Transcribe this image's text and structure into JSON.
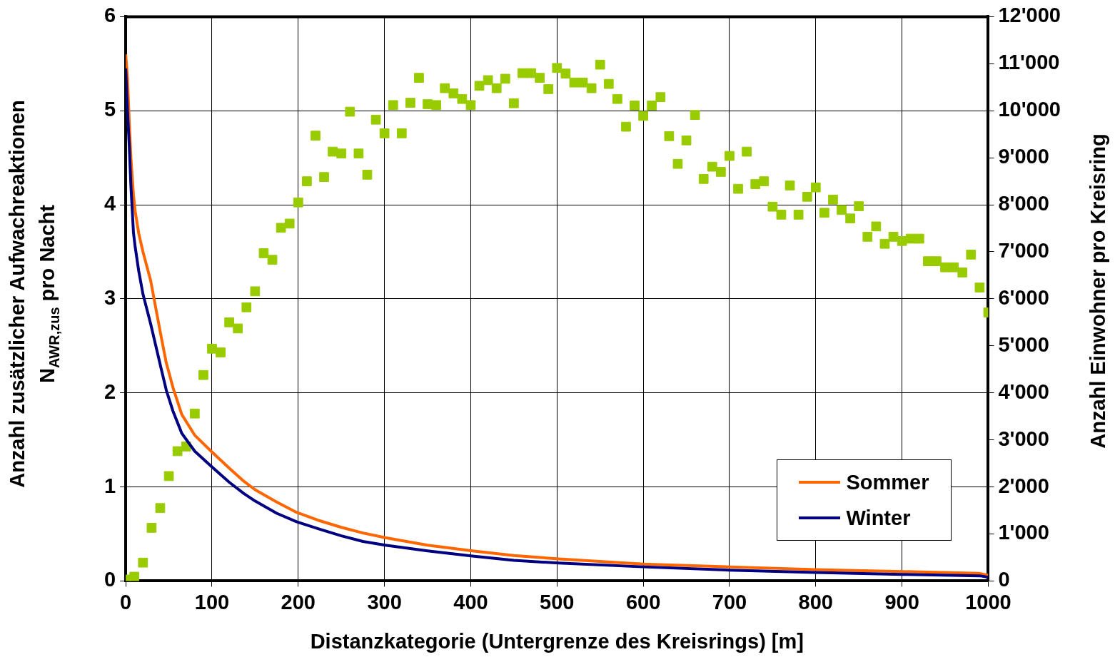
{
  "chart_data": {
    "type": "line",
    "xlabel": "Distanzkategorie (Untergrenze des Kreisrings) [m]",
    "ylabel": "Anzahl zusätzlicher Aufwachreaktionen\nN$_{AWR,zus}$ pro Nacht",
    "y2label": "Anzahl Einwohner pro Kreisring",
    "xlim": [
      0,
      1000
    ],
    "xticks": [
      0,
      100,
      200,
      300,
      400,
      500,
      600,
      700,
      800,
      900,
      1000
    ],
    "ylim": [
      0,
      6
    ],
    "yticks": [
      0,
      1,
      2,
      3,
      4,
      5,
      6
    ],
    "y2lim": [
      0,
      12000
    ],
    "y2ticks": [
      {
        "value": 0,
        "label": "0"
      },
      {
        "value": 1000,
        "label": "1'000"
      },
      {
        "value": 2000,
        "label": "2'000"
      },
      {
        "value": 3000,
        "label": "3'000"
      },
      {
        "value": 4000,
        "label": "4'000"
      },
      {
        "value": 5000,
        "label": "5'000"
      },
      {
        "value": 6000,
        "label": "6'000"
      },
      {
        "value": 7000,
        "label": "7'000"
      },
      {
        "value": 8000,
        "label": "8'000"
      },
      {
        "value": 9000,
        "label": "9'000"
      },
      {
        "value": 10000,
        "label": "10'000"
      },
      {
        "value": 11000,
        "label": "11'000"
      },
      {
        "value": 12000,
        "label": "12'000"
      }
    ],
    "grid": true,
    "legend": "bottom right",
    "series": [
      {
        "type": "scatter",
        "axis": "y2",
        "marker": "square",
        "color": "#99cc00",
        "x": [
          0,
          10,
          20,
          30,
          40,
          50,
          60,
          70,
          80,
          90,
          100,
          110,
          120,
          130,
          140,
          150,
          160,
          170,
          180,
          190,
          200,
          210,
          220,
          230,
          240,
          250,
          260,
          270,
          280,
          290,
          300,
          310,
          320,
          330,
          340,
          350,
          360,
          370,
          380,
          390,
          400,
          410,
          420,
          430,
          440,
          450,
          460,
          470,
          480,
          490,
          500,
          510,
          520,
          530,
          540,
          550,
          560,
          570,
          580,
          590,
          600,
          610,
          620,
          630,
          640,
          650,
          660,
          670,
          680,
          690,
          700,
          710,
          720,
          730,
          740,
          750,
          760,
          770,
          780,
          790,
          800,
          810,
          820,
          830,
          840,
          850,
          860,
          870,
          880,
          890,
          900,
          910,
          920,
          930,
          940,
          950,
          960,
          970,
          980,
          990,
          1000
        ],
        "values": [
          30,
          90,
          390,
          1130,
          1550,
          2230,
          2760,
          2860,
          3560,
          4380,
          4940,
          4860,
          5500,
          5370,
          5820,
          6160,
          6970,
          6830,
          7510,
          7600,
          8050,
          8500,
          9470,
          8590,
          9130,
          9090,
          9980,
          9090,
          8640,
          9810,
          9520,
          10120,
          9520,
          10170,
          10700,
          10140,
          10120,
          10480,
          10370,
          10250,
          10120,
          10530,
          10650,
          10480,
          10680,
          10160,
          10800,
          10800,
          10700,
          10460,
          10910,
          10790,
          10600,
          10600,
          10480,
          10980,
          10570,
          10250,
          9660,
          10110,
          9890,
          10110,
          10290,
          9460,
          8870,
          9370,
          9910,
          8550,
          8810,
          8700,
          9040,
          8340,
          9130,
          8440,
          8500,
          7960,
          7790,
          8410,
          7790,
          8170,
          8370,
          7830,
          8110,
          7890,
          7710,
          7970,
          7320,
          7540,
          7170,
          7320,
          7230,
          7280,
          7280,
          6800,
          6800,
          6670,
          6670,
          6560,
          6940,
          6240,
          5710
        ]
      },
      {
        "name": "Sommer",
        "type": "line",
        "marker": "none",
        "color": "#ff6600",
        "x": [
          0,
          2,
          4,
          6,
          9,
          11,
          15,
          20,
          29,
          40,
          47,
          55,
          65,
          80,
          99,
          120,
          137,
          150,
          175,
          198,
          225,
          250,
          275,
          301,
          350,
          402,
          450,
          502,
          600,
          700,
          800,
          900,
          990,
          1000
        ],
        "values": [
          5.6,
          5.35,
          4.9,
          4.5,
          4.1,
          3.93,
          3.7,
          3.5,
          3.19,
          2.65,
          2.32,
          2.05,
          1.77,
          1.55,
          1.38,
          1.2,
          1.06,
          0.97,
          0.84,
          0.73,
          0.64,
          0.57,
          0.51,
          0.46,
          0.38,
          0.32,
          0.27,
          0.235,
          0.18,
          0.15,
          0.12,
          0.1,
          0.08,
          0.06
        ]
      },
      {
        "name": "Winter",
        "type": "line",
        "marker": "none",
        "color": "#000080",
        "x": [
          0,
          2,
          4,
          6,
          9,
          11,
          15,
          20,
          29,
          40,
          47,
          55,
          65,
          80,
          99,
          120,
          137,
          150,
          175,
          198,
          225,
          250,
          275,
          301,
          350,
          402,
          450,
          502,
          600,
          700,
          800,
          900,
          990,
          1000
        ],
        "values": [
          5.45,
          5.0,
          4.65,
          4.2,
          3.7,
          3.55,
          3.3,
          3.05,
          2.73,
          2.3,
          2.03,
          1.8,
          1.57,
          1.38,
          1.22,
          1.05,
          0.93,
          0.85,
          0.72,
          0.63,
          0.55,
          0.48,
          0.42,
          0.38,
          0.32,
          0.265,
          0.22,
          0.19,
          0.15,
          0.115,
          0.09,
          0.07,
          0.055,
          0.04
        ]
      }
    ]
  }
}
